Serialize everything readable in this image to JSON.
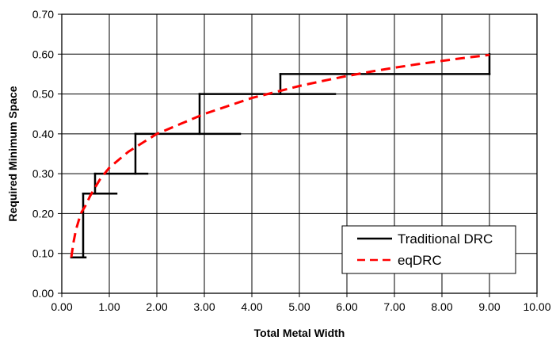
{
  "chart_data": {
    "type": "line",
    "title": "",
    "xlabel": "Total Metal Width",
    "ylabel": "Required Minimum Space",
    "xlim": [
      0,
      10
    ],
    "ylim": [
      0,
      0.7
    ],
    "x_ticks": [
      "0.00",
      "1.00",
      "2.00",
      "3.00",
      "4.00",
      "5.00",
      "6.00",
      "7.00",
      "8.00",
      "9.00",
      "10.00"
    ],
    "y_ticks": [
      "0.00",
      "0.10",
      "0.20",
      "0.30",
      "0.40",
      "0.50",
      "0.60",
      "0.70"
    ],
    "grid": true,
    "legend_position": "bottom-right",
    "series": [
      {
        "name": "Traditional DRC",
        "color": "#000000",
        "style": "solid",
        "segments": [
          [
            [
              0.2,
              0.09
            ],
            [
              0.5,
              0.09
            ]
          ],
          [
            [
              0.45,
              0.09
            ],
            [
              0.45,
              0.25
            ]
          ],
          [
            [
              0.45,
              0.25
            ],
            [
              1.15,
              0.25
            ]
          ],
          [
            [
              0.7,
              0.25
            ],
            [
              0.7,
              0.3
            ]
          ],
          [
            [
              0.7,
              0.3
            ],
            [
              1.8,
              0.3
            ]
          ],
          [
            [
              1.55,
              0.3
            ],
            [
              1.55,
              0.4
            ]
          ],
          [
            [
              1.55,
              0.4
            ],
            [
              3.75,
              0.4
            ]
          ],
          [
            [
              2.9,
              0.4
            ],
            [
              2.9,
              0.5
            ]
          ],
          [
            [
              2.9,
              0.5
            ],
            [
              5.75,
              0.5
            ]
          ],
          [
            [
              4.6,
              0.5
            ],
            [
              4.6,
              0.55
            ]
          ],
          [
            [
              4.6,
              0.55
            ],
            [
              9.0,
              0.55
            ]
          ],
          [
            [
              9.0,
              0.55
            ],
            [
              9.0,
              0.6
            ]
          ]
        ]
      },
      {
        "name": "eqDRC",
        "color": "#ff0000",
        "style": "dashed",
        "points": [
          [
            0.2,
            0.09
          ],
          [
            0.25,
            0.13
          ],
          [
            0.3,
            0.16
          ],
          [
            0.35,
            0.18
          ],
          [
            0.4,
            0.2
          ],
          [
            0.5,
            0.22
          ],
          [
            0.6,
            0.245
          ],
          [
            0.7,
            0.265
          ],
          [
            0.8,
            0.285
          ],
          [
            0.9,
            0.3
          ],
          [
            1.0,
            0.315
          ],
          [
            1.2,
            0.335
          ],
          [
            1.4,
            0.355
          ],
          [
            1.6,
            0.37
          ],
          [
            1.8,
            0.385
          ],
          [
            2.0,
            0.4
          ],
          [
            2.5,
            0.425
          ],
          [
            3.0,
            0.45
          ],
          [
            3.5,
            0.47
          ],
          [
            4.0,
            0.49
          ],
          [
            4.5,
            0.505
          ],
          [
            5.0,
            0.52
          ],
          [
            5.5,
            0.533
          ],
          [
            6.0,
            0.545
          ],
          [
            6.5,
            0.556
          ],
          [
            7.0,
            0.566
          ],
          [
            7.5,
            0.575
          ],
          [
            8.0,
            0.583
          ],
          [
            8.5,
            0.591
          ],
          [
            9.0,
            0.598
          ]
        ]
      }
    ]
  }
}
